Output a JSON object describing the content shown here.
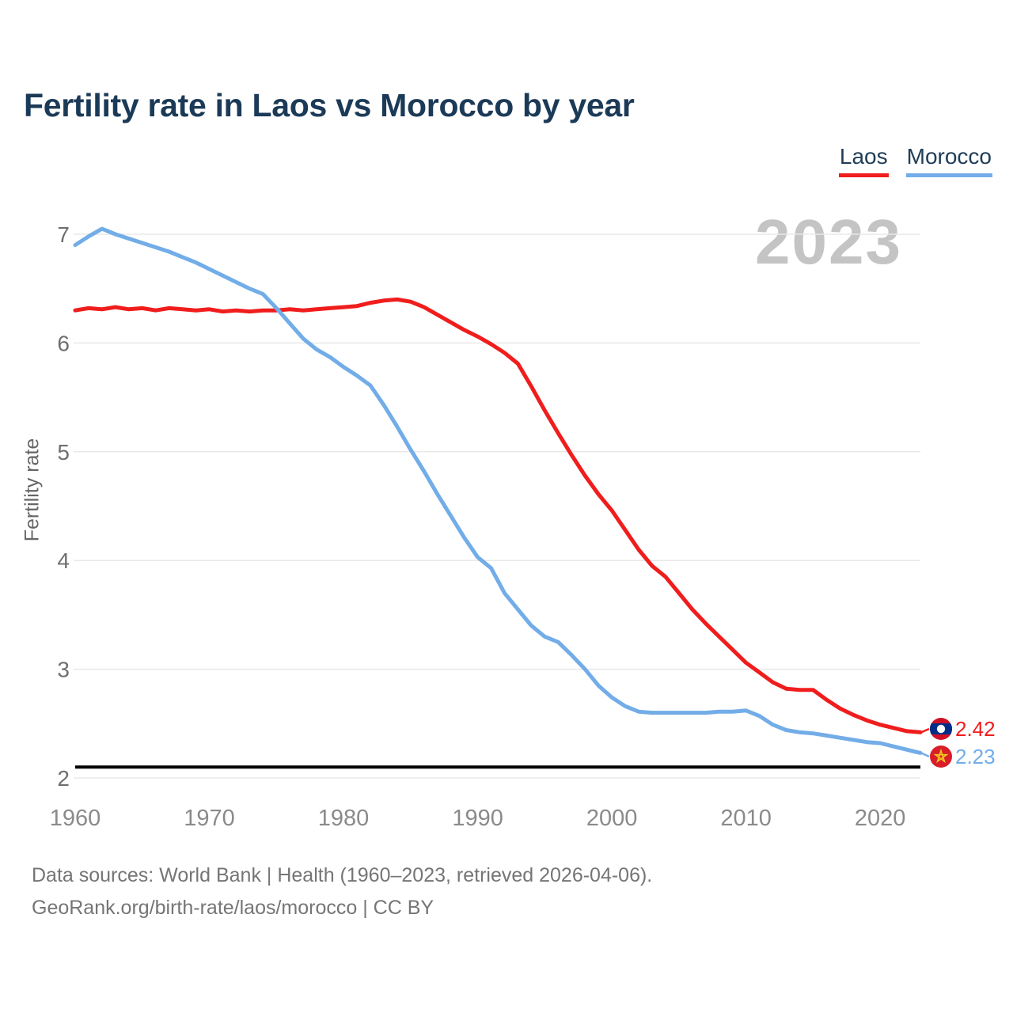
{
  "title": "Fertility rate in Laos vs Morocco by year",
  "watermark": "2023",
  "legend": [
    {
      "label": "Laos",
      "color": "#f01d1d"
    },
    {
      "label": "Morocco",
      "color": "#72ade8"
    }
  ],
  "y_axis": {
    "label": "Fertility rate",
    "ticks": [
      2,
      3,
      4,
      5,
      6,
      7
    ]
  },
  "x_axis": {
    "ticks": [
      1960,
      1970,
      1980,
      1990,
      2000,
      2010,
      2020
    ]
  },
  "chart_data": {
    "type": "line",
    "title": "Fertility rate in Laos vs Morocco by year",
    "ylabel": "Fertility rate",
    "x_start": 1960,
    "x_end": 2023,
    "ylim": [
      2,
      7.05
    ],
    "grid": true,
    "legend_position": "top-right",
    "reference_line": {
      "value": 2.1,
      "color": "#000000"
    },
    "series": [
      {
        "name": "Laos",
        "color": "#f01d1d",
        "end_label": "2.42",
        "values": [
          6.3,
          6.32,
          6.31,
          6.33,
          6.31,
          6.32,
          6.3,
          6.32,
          6.31,
          6.3,
          6.31,
          6.29,
          6.3,
          6.29,
          6.3,
          6.3,
          6.31,
          6.3,
          6.31,
          6.32,
          6.33,
          6.34,
          6.37,
          6.39,
          6.4,
          6.38,
          6.33,
          6.26,
          6.19,
          6.12,
          6.06,
          5.99,
          5.91,
          5.81,
          5.6,
          5.38,
          5.17,
          4.97,
          4.78,
          4.61,
          4.46,
          4.28,
          4.1,
          3.95,
          3.85,
          3.7,
          3.55,
          3.42,
          3.3,
          3.18,
          3.06,
          2.97,
          2.88,
          2.82,
          2.81,
          2.81,
          2.72,
          2.64,
          2.58,
          2.53,
          2.49,
          2.46,
          2.43,
          2.42
        ]
      },
      {
        "name": "Morocco",
        "color": "#72ade8",
        "end_label": "2.23",
        "values": [
          6.9,
          6.98,
          7.05,
          7.0,
          6.96,
          6.92,
          6.88,
          6.84,
          6.79,
          6.74,
          6.68,
          6.62,
          6.56,
          6.5,
          6.45,
          6.32,
          6.18,
          6.04,
          5.94,
          5.87,
          5.78,
          5.7,
          5.61,
          5.43,
          5.23,
          5.02,
          4.82,
          4.61,
          4.41,
          4.21,
          4.03,
          3.93,
          3.7,
          3.55,
          3.4,
          3.3,
          3.25,
          3.13,
          3.0,
          2.85,
          2.74,
          2.66,
          2.61,
          2.6,
          2.6,
          2.6,
          2.6,
          2.6,
          2.61,
          2.61,
          2.62,
          2.57,
          2.49,
          2.44,
          2.42,
          2.41,
          2.39,
          2.37,
          2.35,
          2.33,
          2.32,
          2.29,
          2.26,
          2.23
        ]
      }
    ]
  },
  "footer": {
    "line1": "Data sources: World Bank | Health (1960–2023, retrieved 2026-04-06).",
    "line2": "GeoRank.org/birth-rate/laos/morocco | CC BY"
  }
}
